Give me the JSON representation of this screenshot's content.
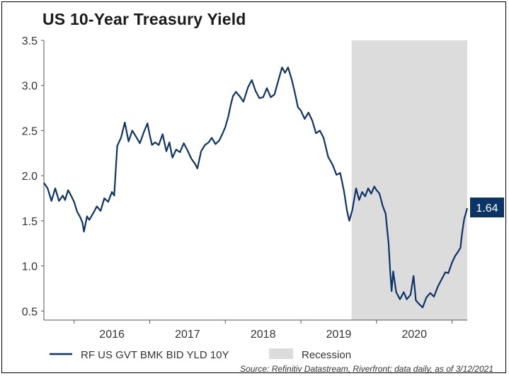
{
  "title": "US 10-Year Treasury Yield",
  "source": "Source: Refinitiv Datastream, Riverfront; data daily, as of 3/12/2021",
  "chart_data": {
    "type": "line",
    "title": "US 10-Year Treasury Yield",
    "xlabel": "",
    "ylabel": "",
    "ylim": [
      0.4,
      3.5
    ],
    "yticks": [
      "0.5",
      "1.0",
      "1.5",
      "2.0",
      "2.5",
      "3.0",
      "3.5"
    ],
    "xticks": [
      "2016",
      "2017",
      "2018",
      "2019",
      "2020"
    ],
    "xlim": [
      2015.6,
      2021.2
    ],
    "grid": false,
    "legend_position": "bottom",
    "last_value_label": "1.64",
    "colors": {
      "line": "#0d3467",
      "recession": "#dcdcdc",
      "label_bg": "#0d3467"
    },
    "recession": {
      "label": "Recession",
      "start": 2019.67,
      "end": 2021.2
    },
    "series": [
      {
        "name": "RF US GVT BMK BID YLD 10Y",
        "points": [
          [
            2015.6,
            1.92
          ],
          [
            2015.65,
            1.86
          ],
          [
            2015.7,
            1.72
          ],
          [
            2015.75,
            1.86
          ],
          [
            2015.8,
            1.72
          ],
          [
            2015.85,
            1.78
          ],
          [
            2015.88,
            1.73
          ],
          [
            2015.92,
            1.84
          ],
          [
            2015.96,
            1.78
          ],
          [
            2016.0,
            1.71
          ],
          [
            2016.04,
            1.6
          ],
          [
            2016.08,
            1.54
          ],
          [
            2016.11,
            1.48
          ],
          [
            2016.13,
            1.38
          ],
          [
            2016.17,
            1.55
          ],
          [
            2016.2,
            1.51
          ],
          [
            2016.25,
            1.58
          ],
          [
            2016.3,
            1.66
          ],
          [
            2016.35,
            1.61
          ],
          [
            2016.4,
            1.75
          ],
          [
            2016.45,
            1.71
          ],
          [
            2016.5,
            1.82
          ],
          [
            2016.53,
            1.78
          ],
          [
            2016.57,
            2.33
          ],
          [
            2016.62,
            2.42
          ],
          [
            2016.67,
            2.59
          ],
          [
            2016.72,
            2.38
          ],
          [
            2016.77,
            2.5
          ],
          [
            2016.82,
            2.43
          ],
          [
            2016.87,
            2.36
          ],
          [
            2016.92,
            2.48
          ],
          [
            2016.97,
            2.58
          ],
          [
            2017.0,
            2.45
          ],
          [
            2017.03,
            2.34
          ],
          [
            2017.07,
            2.37
          ],
          [
            2017.12,
            2.34
          ],
          [
            2017.17,
            2.46
          ],
          [
            2017.22,
            2.27
          ],
          [
            2017.26,
            2.37
          ],
          [
            2017.3,
            2.2
          ],
          [
            2017.35,
            2.29
          ],
          [
            2017.4,
            2.26
          ],
          [
            2017.45,
            2.36
          ],
          [
            2017.5,
            2.28
          ],
          [
            2017.55,
            2.19
          ],
          [
            2017.6,
            2.13
          ],
          [
            2017.63,
            2.08
          ],
          [
            2017.68,
            2.27
          ],
          [
            2017.73,
            2.34
          ],
          [
            2017.78,
            2.37
          ],
          [
            2017.82,
            2.42
          ],
          [
            2017.87,
            2.35
          ],
          [
            2017.92,
            2.39
          ],
          [
            2017.96,
            2.46
          ],
          [
            2018.0,
            2.54
          ],
          [
            2018.04,
            2.66
          ],
          [
            2018.07,
            2.78
          ],
          [
            2018.1,
            2.88
          ],
          [
            2018.14,
            2.93
          ],
          [
            2018.19,
            2.88
          ],
          [
            2018.24,
            2.82
          ],
          [
            2018.3,
            2.98
          ],
          [
            2018.35,
            3.06
          ],
          [
            2018.4,
            2.94
          ],
          [
            2018.45,
            2.86
          ],
          [
            2018.5,
            2.87
          ],
          [
            2018.55,
            2.97
          ],
          [
            2018.6,
            2.87
          ],
          [
            2018.65,
            2.9
          ],
          [
            2018.7,
            3.05
          ],
          [
            2018.75,
            3.2
          ],
          [
            2018.79,
            3.14
          ],
          [
            2018.83,
            3.2
          ],
          [
            2018.88,
            3.06
          ],
          [
            2018.92,
            2.92
          ],
          [
            2018.96,
            2.76
          ],
          [
            2019.0,
            2.72
          ],
          [
            2019.05,
            2.63
          ],
          [
            2019.1,
            2.7
          ],
          [
            2019.15,
            2.61
          ],
          [
            2019.2,
            2.47
          ],
          [
            2019.25,
            2.5
          ],
          [
            2019.3,
            2.42
          ],
          [
            2019.36,
            2.21
          ],
          [
            2019.42,
            2.12
          ],
          [
            2019.47,
            2.01
          ],
          [
            2019.52,
            2.03
          ],
          [
            2019.57,
            1.83
          ],
          [
            2019.61,
            1.61
          ],
          [
            2019.64,
            1.5
          ],
          [
            2019.68,
            1.62
          ],
          [
            2019.73,
            1.86
          ],
          [
            2019.77,
            1.73
          ],
          [
            2019.81,
            1.82
          ],
          [
            2019.85,
            1.77
          ],
          [
            2019.89,
            1.86
          ],
          [
            2019.93,
            1.8
          ],
          [
            2019.97,
            1.88
          ],
          [
            2020.0,
            1.84
          ],
          [
            2020.04,
            1.8
          ],
          [
            2020.08,
            1.67
          ],
          [
            2020.12,
            1.58
          ],
          [
            2020.16,
            1.25
          ],
          [
            2020.18,
            0.95
          ],
          [
            2020.2,
            0.72
          ],
          [
            2020.22,
            0.94
          ],
          [
            2020.26,
            0.71
          ],
          [
            2020.31,
            0.63
          ],
          [
            2020.36,
            0.71
          ],
          [
            2020.4,
            0.63
          ],
          [
            2020.45,
            0.68
          ],
          [
            2020.49,
            0.89
          ],
          [
            2020.52,
            0.62
          ],
          [
            2020.56,
            0.58
          ],
          [
            2020.61,
            0.54
          ],
          [
            2020.66,
            0.65
          ],
          [
            2020.71,
            0.7
          ],
          [
            2020.76,
            0.66
          ],
          [
            2020.81,
            0.77
          ],
          [
            2020.86,
            0.85
          ],
          [
            2020.91,
            0.93
          ],
          [
            2020.95,
            0.92
          ],
          [
            2021.0,
            1.04
          ],
          [
            2021.04,
            1.11
          ],
          [
            2021.08,
            1.16
          ],
          [
            2021.11,
            1.2
          ],
          [
            2021.13,
            1.35
          ],
          [
            2021.16,
            1.52
          ],
          [
            2021.2,
            1.64
          ]
        ]
      }
    ]
  }
}
